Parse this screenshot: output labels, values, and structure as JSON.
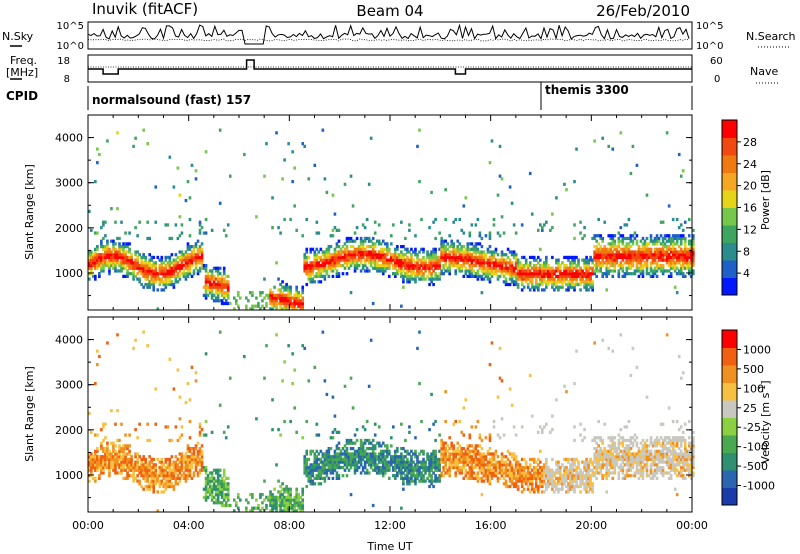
{
  "header": {
    "station": "Inuvik (fitACF)",
    "beam": "Beam 04",
    "date": "26/Feb/2010"
  },
  "nsky_panel": {
    "left_label": "N.Sky",
    "right_label": "N.Search",
    "left_ticks": [
      "10^5",
      "10^0"
    ],
    "right_ticks": [
      "10^5",
      "10^0"
    ]
  },
  "freq_panel": {
    "left_label_line1": "Freq.",
    "left_label_line2": "[MHz]",
    "right_label": "Nave",
    "left_ticks": [
      "18",
      "8"
    ],
    "right_ticks": [
      "60",
      "0"
    ]
  },
  "cpid": {
    "label": "CPID",
    "modes": [
      {
        "name": "normalsound (fast) 157",
        "start_hour": 0
      },
      {
        "name": "themis 3300",
        "start_hour": 18
      }
    ]
  },
  "chart_data": [
    {
      "type": "heatmap",
      "name": "power",
      "xlabel": "",
      "ylabel": "Slant Range [km]",
      "xlim": [
        0,
        24
      ],
      "ylim": [
        180,
        4500
      ],
      "yticks": [
        "1000",
        "2000",
        "3000",
        "4000"
      ],
      "colorbar": {
        "label": "Power [dB]",
        "ticks": [
          "4",
          "8",
          "12",
          "16",
          "20",
          "24",
          "28"
        ],
        "colors": [
          "#0018ff",
          "#1f5fc8",
          "#2a8c8c",
          "#3fa460",
          "#76c84a",
          "#e6d418",
          "#f5a623",
          "#f07a10",
          "#f04a10",
          "#ff0000"
        ]
      }
    },
    {
      "type": "heatmap",
      "name": "velocity",
      "xlabel": "Time UT",
      "ylabel": "Slant Range [km]",
      "xlim": [
        0,
        24
      ],
      "ylim": [
        180,
        4500
      ],
      "xticks": [
        "00:00",
        "04:00",
        "08:00",
        "12:00",
        "16:00",
        "20:00",
        "00:00"
      ],
      "yticks": [
        "1000",
        "2000",
        "3000",
        "4000"
      ],
      "colorbar": {
        "label": "Velocity [m s",
        "label_sup": "-1",
        "label_end": "]",
        "ticks": [
          "1000",
          "500",
          "100",
          "25",
          "-25",
          "-100",
          "-500",
          "-1000"
        ],
        "colors": [
          "#1a3caa",
          "#2a66b0",
          "#2e9070",
          "#4aa850",
          "#8ad040",
          "#c8c8c0",
          "#f8c040",
          "#f09020",
          "#f06010",
          "#ff0000"
        ]
      }
    }
  ]
}
